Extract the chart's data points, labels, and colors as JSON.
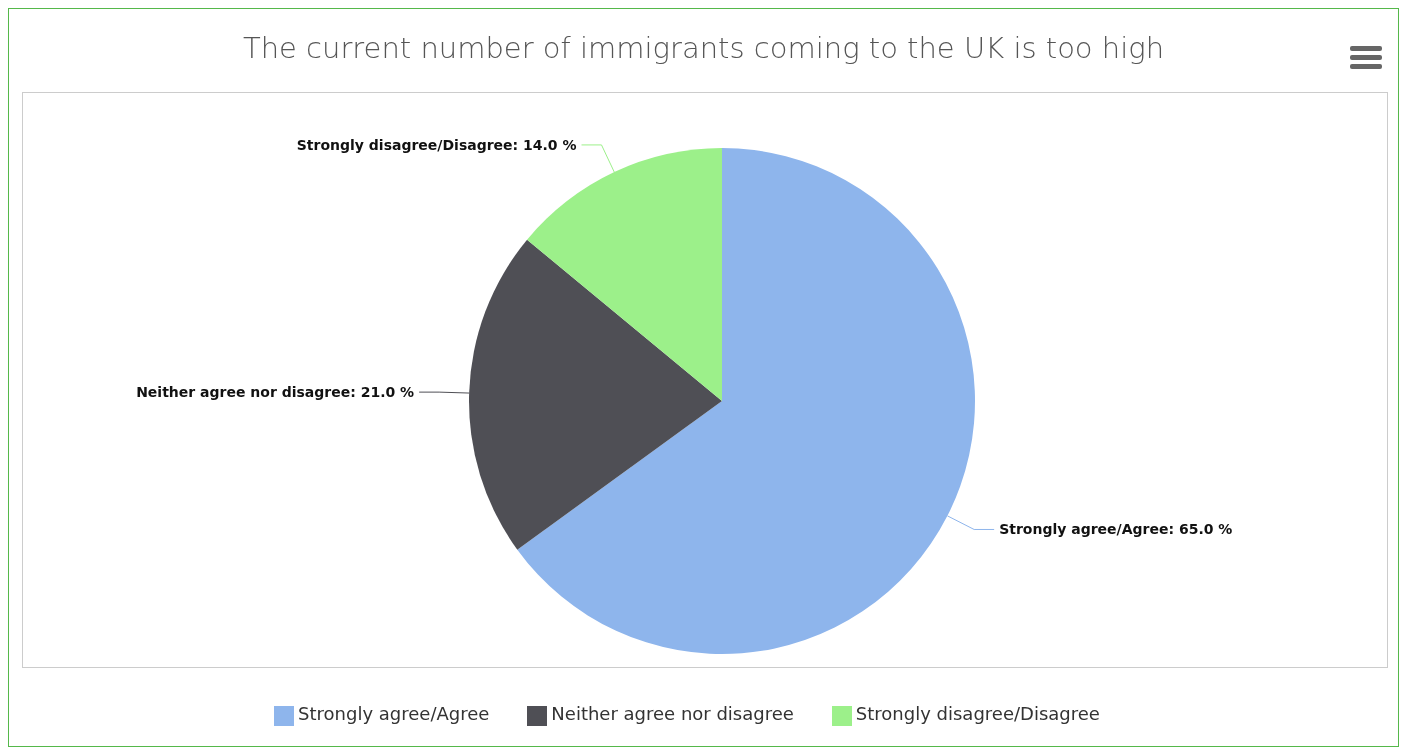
{
  "chart_data": {
    "type": "pie",
    "title": "The current number of immigrants coming to the UK is too high",
    "categories": [
      "Strongly agree/Agree",
      "Neither agree nor disagree",
      "Strongly disagree/Disagree"
    ],
    "values": [
      65,
      21,
      14
    ],
    "value_labels": [
      "Strongly agree/Agree: 65.0 %",
      "Neither agree nor disagree: 21.0 %",
      "Strongly disagree/Disagree: 14.0 %"
    ],
    "colors": [
      "#8eb5ec",
      "#4f4f55",
      "#9cf08a"
    ],
    "legend": "bottom"
  }
}
